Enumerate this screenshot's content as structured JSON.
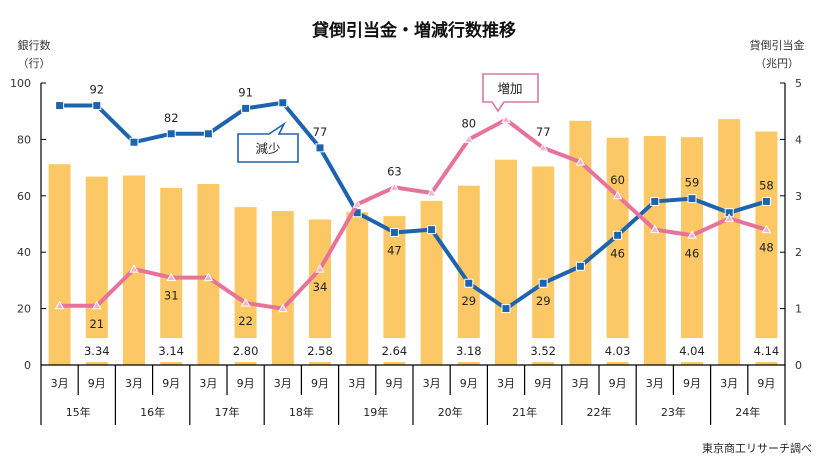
{
  "chart_data": {
    "type": "bar+line",
    "title": "貸倒引当金・増減行数推移",
    "left_axis": {
      "label_line1": "銀行数",
      "label_line2": "（行）",
      "range": [
        0,
        100
      ],
      "ticks": [
        "0",
        "20",
        "40",
        "60",
        "80",
        "100"
      ]
    },
    "right_axis": {
      "label_line1": "貸倒引当金",
      "label_line2": "（兆円）",
      "range": [
        0,
        5
      ],
      "ticks": [
        "0",
        "1",
        "2",
        "3",
        "4",
        "5"
      ]
    },
    "categories": [
      "3月",
      "9月",
      "3月",
      "9月",
      "3月",
      "9月",
      "3月",
      "9月",
      "3月",
      "9月",
      "3月",
      "9月",
      "3月",
      "9月",
      "3月",
      "9月",
      "3月",
      "9月",
      "3月",
      "9月"
    ],
    "groups": [
      "15年",
      "16年",
      "17年",
      "18年",
      "19年",
      "20年",
      "21年",
      "22年",
      "23年",
      "24年"
    ],
    "series": [
      {
        "name": "貸倒引当金",
        "kind": "bar",
        "axis": "right",
        "color": "#FCC865",
        "values": [
          3.56,
          3.34,
          3.36,
          3.14,
          3.21,
          2.8,
          2.73,
          2.58,
          2.71,
          2.64,
          2.91,
          3.18,
          3.64,
          3.52,
          4.33,
          4.03,
          4.06,
          4.04,
          4.36,
          4.14
        ],
        "labels": [
          "",
          "3.34",
          "",
          "3.14",
          "",
          "2.80",
          "",
          "2.58",
          "",
          "2.64",
          "",
          "3.18",
          "",
          "3.52",
          "",
          "4.03",
          "",
          "4.04",
          "",
          "4.14"
        ]
      },
      {
        "name": "減少",
        "kind": "line",
        "axis": "left",
        "color": "#1E63AE",
        "values": [
          92,
          92,
          79,
          82,
          82,
          91,
          93,
          77,
          54,
          47,
          48,
          29,
          20,
          29,
          35,
          46,
          58,
          59,
          54,
          58
        ],
        "labels": [
          "",
          "92",
          "",
          "82",
          "",
          "91",
          "",
          "77",
          "",
          "47",
          "",
          "29",
          "",
          "29",
          "",
          "46",
          "",
          "59",
          "",
          "58"
        ]
      },
      {
        "name": "増加",
        "kind": "line",
        "axis": "left",
        "color": "#E8739A",
        "values": [
          21,
          21,
          34,
          31,
          31,
          22,
          20,
          34,
          57,
          63,
          61,
          80,
          87,
          77,
          72,
          60,
          48,
          46,
          52,
          48
        ],
        "labels": [
          "",
          "21",
          "",
          "31",
          "",
          "22",
          "",
          "34",
          "",
          "63",
          "",
          "80",
          "",
          "77",
          "",
          "60",
          "",
          "46",
          "",
          "48"
        ]
      }
    ],
    "callouts": {
      "decrease": "減少",
      "increase": "増加"
    },
    "source": "東京商工リサーチ調べ"
  }
}
